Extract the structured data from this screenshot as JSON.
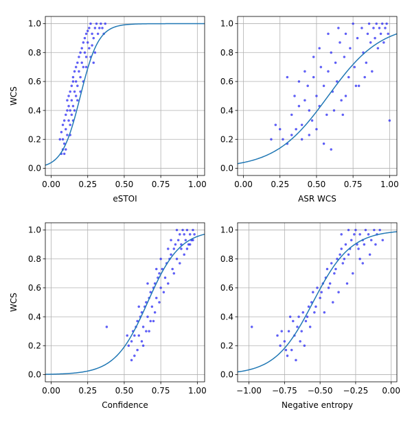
{
  "chart_data": [
    {
      "type": "scatter",
      "xlabel": "eSTOI",
      "ylabel": "WCS",
      "xlim": [
        -0.04,
        1.05
      ],
      "ylim": [
        -0.05,
        1.05
      ],
      "xticks": [
        0.0,
        0.25,
        0.5,
        0.75,
        1.0
      ],
      "xtick_labels": [
        "0.00",
        "0.25",
        "0.50",
        "0.75",
        "1.00"
      ],
      "yticks": [
        0.0,
        0.2,
        0.4,
        0.6,
        0.8,
        1.0
      ],
      "ytick_labels": [
        "0.0",
        "0.2",
        "0.4",
        "0.6",
        "0.8",
        "1.0"
      ],
      "grid": true,
      "points": [
        [
          0.07,
          0.1
        ],
        [
          0.08,
          0.13
        ],
        [
          0.09,
          0.1
        ],
        [
          0.06,
          0.2
        ],
        [
          0.07,
          0.25
        ],
        [
          0.08,
          0.2
        ],
        [
          0.09,
          0.17
        ],
        [
          0.1,
          0.13
        ],
        [
          0.08,
          0.3
        ],
        [
          0.09,
          0.33
        ],
        [
          0.1,
          0.27
        ],
        [
          0.11,
          0.23
        ],
        [
          0.1,
          0.37
        ],
        [
          0.11,
          0.4
        ],
        [
          0.12,
          0.33
        ],
        [
          0.13,
          0.3
        ],
        [
          0.11,
          0.47
        ],
        [
          0.12,
          0.43
        ],
        [
          0.13,
          0.4
        ],
        [
          0.14,
          0.37
        ],
        [
          0.12,
          0.5
        ],
        [
          0.13,
          0.53
        ],
        [
          0.14,
          0.47
        ],
        [
          0.15,
          0.43
        ],
        [
          0.14,
          0.57
        ],
        [
          0.15,
          0.6
        ],
        [
          0.16,
          0.53
        ],
        [
          0.17,
          0.5
        ],
        [
          0.15,
          0.63
        ],
        [
          0.16,
          0.67
        ],
        [
          0.17,
          0.6
        ],
        [
          0.18,
          0.57
        ],
        [
          0.17,
          0.7
        ],
        [
          0.18,
          0.73
        ],
        [
          0.19,
          0.67
        ],
        [
          0.2,
          0.63
        ],
        [
          0.19,
          0.77
        ],
        [
          0.2,
          0.8
        ],
        [
          0.21,
          0.73
        ],
        [
          0.22,
          0.7
        ],
        [
          0.21,
          0.83
        ],
        [
          0.22,
          0.87
        ],
        [
          0.23,
          0.8
        ],
        [
          0.24,
          0.77
        ],
        [
          0.23,
          0.9
        ],
        [
          0.24,
          0.93
        ],
        [
          0.25,
          0.87
        ],
        [
          0.26,
          0.83
        ],
        [
          0.26,
          0.97
        ],
        [
          0.27,
          1.0
        ],
        [
          0.28,
          0.93
        ],
        [
          0.29,
          0.9
        ],
        [
          0.3,
          0.97
        ],
        [
          0.31,
          1.0
        ],
        [
          0.32,
          0.93
        ],
        [
          0.33,
          0.97
        ],
        [
          0.34,
          1.0
        ],
        [
          0.35,
          0.97
        ],
        [
          0.36,
          0.93
        ],
        [
          0.37,
          1.0
        ],
        [
          0.25,
          0.95
        ],
        [
          0.28,
          0.85
        ],
        [
          0.3,
          0.8
        ],
        [
          0.22,
          0.6
        ],
        [
          0.2,
          0.53
        ],
        [
          0.18,
          0.47
        ],
        [
          0.16,
          0.4
        ],
        [
          0.13,
          0.23
        ],
        [
          0.15,
          0.33
        ],
        [
          0.24,
          0.7
        ],
        [
          0.27,
          0.77
        ],
        [
          0.29,
          0.73
        ]
      ],
      "curve": {
        "k": 16,
        "x0": 0.2
      }
    },
    {
      "type": "scatter",
      "xlabel": "ASR WCS",
      "ylabel": "",
      "xlim": [
        -0.04,
        1.05
      ],
      "ylim": [
        -0.05,
        1.05
      ],
      "xticks": [
        0.0,
        0.25,
        0.5,
        0.75,
        1.0
      ],
      "xtick_labels": [
        "0.00",
        "0.25",
        "0.50",
        "0.75",
        "1.00"
      ],
      "yticks": [
        0.0,
        0.2,
        0.4,
        0.6,
        0.8,
        1.0
      ],
      "ytick_labels": [
        "0.0",
        "0.2",
        "0.4",
        "0.6",
        "0.8",
        "1.0"
      ],
      "grid": true,
      "points": [
        [
          0.19,
          0.2
        ],
        [
          0.22,
          0.3
        ],
        [
          0.25,
          0.27
        ],
        [
          0.27,
          0.2
        ],
        [
          0.3,
          0.17
        ],
        [
          0.33,
          0.23
        ],
        [
          0.33,
          0.37
        ],
        [
          0.36,
          0.27
        ],
        [
          0.38,
          0.43
        ],
        [
          0.4,
          0.3
        ],
        [
          0.42,
          0.47
        ],
        [
          0.44,
          0.57
        ],
        [
          0.45,
          0.4
        ],
        [
          0.47,
          0.33
        ],
        [
          0.48,
          0.63
        ],
        [
          0.5,
          0.5
        ],
        [
          0.52,
          0.43
        ],
        [
          0.53,
          0.7
        ],
        [
          0.55,
          0.57
        ],
        [
          0.57,
          0.37
        ],
        [
          0.58,
          0.67
        ],
        [
          0.6,
          0.8
        ],
        [
          0.61,
          0.53
        ],
        [
          0.63,
          0.73
        ],
        [
          0.64,
          0.6
        ],
        [
          0.66,
          0.87
        ],
        [
          0.67,
          0.47
        ],
        [
          0.69,
          0.77
        ],
        [
          0.7,
          0.93
        ],
        [
          0.72,
          0.63
        ],
        [
          0.73,
          0.83
        ],
        [
          0.75,
          1.0
        ],
        [
          0.76,
          0.7
        ],
        [
          0.78,
          0.9
        ],
        [
          0.79,
          0.57
        ],
        [
          0.81,
          0.97
        ],
        [
          0.82,
          0.8
        ],
        [
          0.84,
          0.73
        ],
        [
          0.85,
          0.93
        ],
        [
          0.86,
          1.0
        ],
        [
          0.87,
          0.87
        ],
        [
          0.88,
          0.67
        ],
        [
          0.89,
          0.97
        ],
        [
          0.9,
          0.9
        ],
        [
          0.91,
          1.0
        ],
        [
          0.92,
          0.83
        ],
        [
          0.93,
          0.97
        ],
        [
          0.94,
          0.93
        ],
        [
          0.95,
          1.0
        ],
        [
          0.96,
          0.87
        ],
        [
          0.97,
          0.97
        ],
        [
          0.98,
          1.0
        ],
        [
          0.99,
          0.93
        ],
        [
          1.0,
          0.33
        ],
        [
          0.3,
          0.63
        ],
        [
          0.35,
          0.5
        ],
        [
          0.4,
          0.2
        ],
        [
          0.45,
          0.23
        ],
        [
          0.5,
          0.27
        ],
        [
          0.55,
          0.17
        ],
        [
          0.6,
          0.13
        ],
        [
          0.42,
          0.67
        ],
        [
          0.48,
          0.77
        ],
        [
          0.52,
          0.83
        ],
        [
          0.58,
          0.93
        ],
        [
          0.65,
          0.97
        ],
        [
          0.7,
          0.5
        ],
        [
          0.77,
          0.57
        ],
        [
          0.83,
          0.63
        ],
        [
          0.38,
          0.6
        ],
        [
          0.62,
          0.4
        ],
        [
          0.68,
          0.37
        ]
      ],
      "curve": {
        "k": 5.5,
        "x0": 0.58
      }
    },
    {
      "type": "scatter",
      "xlabel": "Confidence",
      "ylabel": "WCS",
      "xlim": [
        -0.04,
        1.05
      ],
      "ylim": [
        -0.05,
        1.05
      ],
      "xticks": [
        0.0,
        0.25,
        0.5,
        0.75,
        1.0
      ],
      "xtick_labels": [
        "0.00",
        "0.25",
        "0.50",
        "0.75",
        "1.00"
      ],
      "yticks": [
        0.0,
        0.2,
        0.4,
        0.6,
        0.8,
        1.0
      ],
      "ytick_labels": [
        "0.0",
        "0.2",
        "0.4",
        "0.6",
        "0.8",
        "1.0"
      ],
      "grid": true,
      "points": [
        [
          0.38,
          0.33
        ],
        [
          0.55,
          0.1
        ],
        [
          0.57,
          0.13
        ],
        [
          0.53,
          0.2
        ],
        [
          0.55,
          0.23
        ],
        [
          0.57,
          0.27
        ],
        [
          0.59,
          0.17
        ],
        [
          0.56,
          0.3
        ],
        [
          0.58,
          0.33
        ],
        [
          0.6,
          0.27
        ],
        [
          0.62,
          0.23
        ],
        [
          0.59,
          0.37
        ],
        [
          0.61,
          0.4
        ],
        [
          0.63,
          0.33
        ],
        [
          0.65,
          0.3
        ],
        [
          0.62,
          0.43
        ],
        [
          0.64,
          0.47
        ],
        [
          0.66,
          0.4
        ],
        [
          0.68,
          0.37
        ],
        [
          0.65,
          0.5
        ],
        [
          0.67,
          0.53
        ],
        [
          0.69,
          0.47
        ],
        [
          0.71,
          0.43
        ],
        [
          0.68,
          0.57
        ],
        [
          0.7,
          0.6
        ],
        [
          0.72,
          0.53
        ],
        [
          0.74,
          0.5
        ],
        [
          0.71,
          0.63
        ],
        [
          0.73,
          0.67
        ],
        [
          0.75,
          0.6
        ],
        [
          0.77,
          0.57
        ],
        [
          0.74,
          0.7
        ],
        [
          0.76,
          0.73
        ],
        [
          0.78,
          0.67
        ],
        [
          0.8,
          0.63
        ],
        [
          0.79,
          0.77
        ],
        [
          0.81,
          0.8
        ],
        [
          0.83,
          0.73
        ],
        [
          0.84,
          0.7
        ],
        [
          0.82,
          0.83
        ],
        [
          0.84,
          0.87
        ],
        [
          0.86,
          0.8
        ],
        [
          0.88,
          0.77
        ],
        [
          0.85,
          0.9
        ],
        [
          0.87,
          0.93
        ],
        [
          0.89,
          0.87
        ],
        [
          0.91,
          0.83
        ],
        [
          0.88,
          0.97
        ],
        [
          0.9,
          1.0
        ],
        [
          0.92,
          0.93
        ],
        [
          0.94,
          0.9
        ],
        [
          0.93,
          1.0
        ],
        [
          0.95,
          0.97
        ],
        [
          0.97,
          1.0
        ],
        [
          0.96,
          0.93
        ],
        [
          0.98,
          0.97
        ],
        [
          0.86,
          1.0
        ],
        [
          0.89,
          0.9
        ],
        [
          0.91,
          0.97
        ],
        [
          0.93,
          0.87
        ],
        [
          0.95,
          0.9
        ],
        [
          0.97,
          0.93
        ],
        [
          0.6,
          0.47
        ],
        [
          0.66,
          0.63
        ],
        [
          0.72,
          0.73
        ],
        [
          0.63,
          0.2
        ],
        [
          0.67,
          0.3
        ],
        [
          0.7,
          0.37
        ],
        [
          0.52,
          0.27
        ],
        [
          0.75,
          0.8
        ],
        [
          0.8,
          0.87
        ],
        [
          0.82,
          0.93
        ]
      ],
      "curve": {
        "k": 9,
        "x0": 0.66
      }
    },
    {
      "type": "scatter",
      "xlabel": "Negative entropy",
      "ylabel": "",
      "xlim": [
        -1.08,
        0.04
      ],
      "ylim": [
        -0.05,
        1.05
      ],
      "xticks": [
        -1.0,
        -0.75,
        -0.5,
        -0.25,
        0.0
      ],
      "xtick_labels": [
        "−1.00",
        "−0.75",
        "−0.50",
        "−0.25",
        "0.00"
      ],
      "yticks": [
        0.0,
        0.2,
        0.4,
        0.6,
        0.8,
        1.0
      ],
      "ytick_labels": [
        "0.0",
        "0.2",
        "0.4",
        "0.6",
        "0.8",
        "1.0"
      ],
      "grid": true,
      "points": [
        [
          -0.98,
          0.33
        ],
        [
          -0.8,
          0.27
        ],
        [
          -0.78,
          0.2
        ],
        [
          -0.75,
          0.23
        ],
        [
          -0.73,
          0.13
        ],
        [
          -0.72,
          0.3
        ],
        [
          -0.7,
          0.17
        ],
        [
          -0.68,
          0.27
        ],
        [
          -0.69,
          0.37
        ],
        [
          -0.66,
          0.33
        ],
        [
          -0.64,
          0.23
        ],
        [
          -0.65,
          0.4
        ],
        [
          -0.62,
          0.43
        ],
        [
          -0.6,
          0.37
        ],
        [
          -0.63,
          0.3
        ],
        [
          -0.58,
          0.47
        ],
        [
          -0.56,
          0.5
        ],
        [
          -0.59,
          0.4
        ],
        [
          -0.54,
          0.43
        ],
        [
          -0.55,
          0.57
        ],
        [
          -0.52,
          0.6
        ],
        [
          -0.5,
          0.53
        ],
        [
          -0.53,
          0.47
        ],
        [
          -0.48,
          0.63
        ],
        [
          -0.46,
          0.67
        ],
        [
          -0.49,
          0.57
        ],
        [
          -0.44,
          0.6
        ],
        [
          -0.45,
          0.73
        ],
        [
          -0.42,
          0.77
        ],
        [
          -0.4,
          0.7
        ],
        [
          -0.43,
          0.63
        ],
        [
          -0.38,
          0.8
        ],
        [
          -0.36,
          0.83
        ],
        [
          -0.39,
          0.73
        ],
        [
          -0.34,
          0.77
        ],
        [
          -0.35,
          0.87
        ],
        [
          -0.32,
          0.9
        ],
        [
          -0.3,
          0.83
        ],
        [
          -0.33,
          0.8
        ],
        [
          -0.28,
          0.93
        ],
        [
          -0.26,
          0.97
        ],
        [
          -0.29,
          0.87
        ],
        [
          -0.24,
          0.9
        ],
        [
          -0.25,
          1.0
        ],
        [
          -0.22,
          0.97
        ],
        [
          -0.2,
          0.93
        ],
        [
          -0.23,
          0.87
        ],
        [
          -0.18,
          1.0
        ],
        [
          -0.16,
          0.97
        ],
        [
          -0.19,
          0.9
        ],
        [
          -0.14,
          0.93
        ],
        [
          -0.12,
          1.0
        ],
        [
          -0.1,
          0.97
        ],
        [
          -0.08,
          1.0
        ],
        [
          -0.11,
          0.9
        ],
        [
          -0.06,
          0.93
        ],
        [
          -0.3,
          1.0
        ],
        [
          -0.27,
          0.7
        ],
        [
          -0.22,
          0.8
        ],
        [
          -0.37,
          0.57
        ],
        [
          -0.41,
          0.5
        ],
        [
          -0.47,
          0.43
        ],
        [
          -0.57,
          0.33
        ],
        [
          -0.61,
          0.2
        ],
        [
          -0.67,
          0.1
        ],
        [
          -0.74,
          0.17
        ],
        [
          -0.77,
          0.3
        ],
        [
          -0.71,
          0.4
        ],
        [
          -0.31,
          0.63
        ],
        [
          -0.2,
          0.77
        ],
        [
          -0.15,
          0.83
        ],
        [
          -0.35,
          0.97
        ]
      ],
      "curve": {
        "k": 7.5,
        "x0": -0.55
      }
    }
  ]
}
